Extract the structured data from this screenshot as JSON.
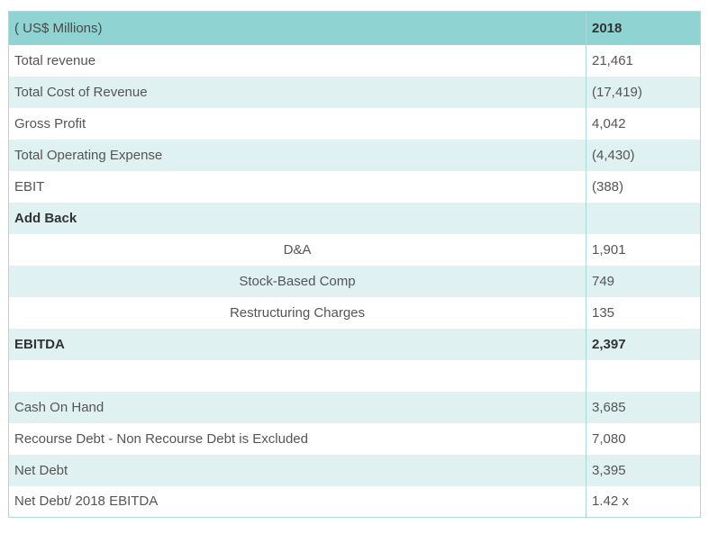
{
  "table": {
    "header": {
      "label": "( US$ Millions)",
      "year": "2018"
    },
    "rows": [
      {
        "label": "Total revenue",
        "value": "21,461",
        "bold": false,
        "indent": false
      },
      {
        "label": "Total Cost of Revenue",
        "value": "(17,419)",
        "bold": false,
        "indent": false
      },
      {
        "label": "Gross Profit",
        "value": "4,042",
        "bold": false,
        "indent": false
      },
      {
        "label": "Total Operating Expense",
        "value": "(4,430)",
        "bold": false,
        "indent": false
      },
      {
        "label": "EBIT",
        "value": "(388)",
        "bold": false,
        "indent": false
      },
      {
        "label": "Add Back",
        "value": "",
        "bold": true,
        "indent": false
      },
      {
        "label": "D&A",
        "value": "1,901",
        "bold": false,
        "indent": true
      },
      {
        "label": "Stock-Based Comp",
        "value": "749",
        "bold": false,
        "indent": true
      },
      {
        "label": "Restructuring Charges",
        "value": "135",
        "bold": false,
        "indent": true
      },
      {
        "label": "EBITDA",
        "value": "2,397",
        "bold": true,
        "indent": false
      },
      {
        "label": "",
        "value": "",
        "bold": false,
        "indent": false
      },
      {
        "label": "Cash On Hand",
        "value": "3,685",
        "bold": false,
        "indent": false
      },
      {
        "label": "Recourse Debt - Non Recourse Debt is Excluded",
        "value": "7,080",
        "bold": false,
        "indent": false
      },
      {
        "label": "Net Debt",
        "value": "3,395",
        "bold": false,
        "indent": false
      },
      {
        "label": "Net Debt/ 2018 EBITDA",
        "value": "1.42 x",
        "bold": false,
        "indent": false
      }
    ]
  }
}
